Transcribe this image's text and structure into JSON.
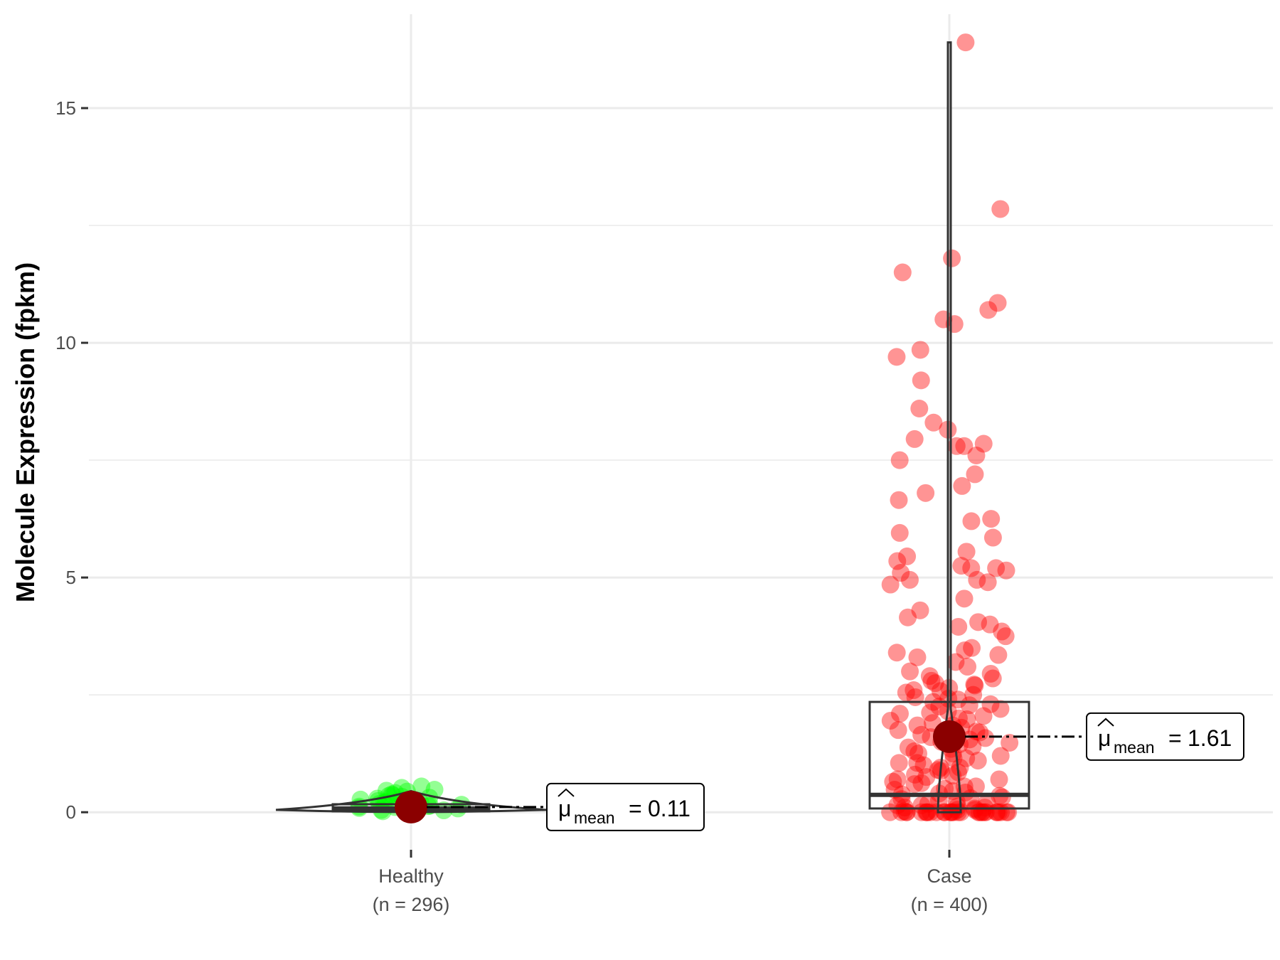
{
  "chart_data": {
    "type": "violin-box-jitter",
    "ylabel": "Molecule Expression (fpkm)",
    "xlabel": "",
    "ylim": [
      -0.8,
      17.0
    ],
    "yticks": [
      0,
      5,
      10,
      15
    ],
    "ytick_labels": [
      "0",
      "5",
      "10",
      "15"
    ],
    "grid": true,
    "groups": [
      {
        "key": "healthy",
        "name": "Healthy",
        "n_label": "(n = 296)",
        "n": 296,
        "color": "#00ff00",
        "mean": 0.11,
        "mean_label": "0.11",
        "median": 0.08,
        "q1": 0.02,
        "q3": 0.17,
        "min": 0.0,
        "max": 0.55,
        "points": [
          0.33,
          0.12,
          0.41,
          0.05,
          0.22,
          0.18,
          0.48,
          0.09,
          0.27,
          0.36,
          0.14,
          0.02,
          0.44,
          0.31,
          0.2,
          0.07,
          0.52,
          0.25,
          0.16,
          0.38,
          0.11,
          0.29,
          0.04,
          0.46,
          0.21,
          0.35,
          0.13,
          0.55,
          0.24,
          0.08
        ]
      },
      {
        "key": "case",
        "name": "Case",
        "n_label": "(n = 400)",
        "n": 400,
        "color": "#ff0000",
        "mean": 1.61,
        "mean_label": "1.61",
        "median": 0.37,
        "q1": 0.08,
        "q3": 2.35,
        "min": 0.0,
        "max": 16.4,
        "points": [
          16.4,
          12.85,
          11.8,
          11.5,
          10.85,
          10.7,
          10.5,
          10.4,
          9.85,
          9.7,
          9.2,
          8.6,
          8.3,
          8.15,
          7.95,
          7.85,
          7.8,
          7.8,
          7.6,
          7.5,
          7.2,
          6.95,
          6.8,
          6.65,
          6.25,
          6.2,
          5.95,
          5.85,
          5.55,
          5.45,
          5.35,
          5.25,
          5.2,
          5.2,
          5.15,
          5.1,
          4.95,
          4.95,
          4.9,
          4.85,
          4.55,
          4.3,
          4.15,
          4.05,
          4.0,
          3.95,
          3.85,
          3.75,
          3.5,
          3.45,
          3.4,
          3.35,
          3.3,
          3.2,
          3.1,
          3.0,
          2.95,
          2.9,
          2.85,
          2.8,
          2.75,
          2.7,
          2.65,
          2.6,
          2.55,
          2.5,
          2.45,
          2.4,
          2.35,
          2.3,
          2.25,
          2.2,
          2.15,
          2.1,
          2.05,
          2.0,
          1.95,
          1.9,
          1.85,
          1.8,
          1.75,
          1.7,
          1.65,
          1.6,
          1.55,
          1.5,
          1.45,
          1.4,
          1.35,
          1.3,
          1.25,
          1.2,
          1.15,
          1.1,
          1.05,
          1.0,
          0.95,
          0.9,
          0.85,
          0.8,
          0.75,
          0.7,
          0.65,
          0.6,
          0.55,
          0.5,
          0.45,
          0.4,
          0.35,
          0.3,
          0.25,
          0.2,
          0.15,
          0.1,
          0.05,
          0.02,
          0.0,
          0.0,
          0.0,
          0.0,
          0.0,
          0.0,
          0.0,
          0.0,
          0.0,
          0.0,
          0.0,
          0.0,
          0.0,
          0.0,
          0.0,
          0.0,
          0.0,
          0.0,
          0.0,
          0.0,
          0.0,
          0.0,
          0.0,
          0.0,
          0.0,
          0.0,
          0.0,
          0.0,
          0.0,
          0.0,
          0.05,
          0.08,
          0.1,
          0.12,
          0.15,
          0.18,
          0.22,
          0.28,
          0.32,
          0.38,
          0.42,
          0.48,
          0.55,
          0.62,
          0.7,
          0.78,
          0.88,
          0.95,
          1.05,
          1.15,
          1.25,
          1.38,
          1.48,
          1.58,
          1.72,
          1.85,
          1.98,
          2.12,
          2.28,
          2.42,
          2.58,
          2.72
        ]
      }
    ]
  },
  "mean_symbol": "μ",
  "mean_subscript": "mean",
  "mean_equals": "="
}
